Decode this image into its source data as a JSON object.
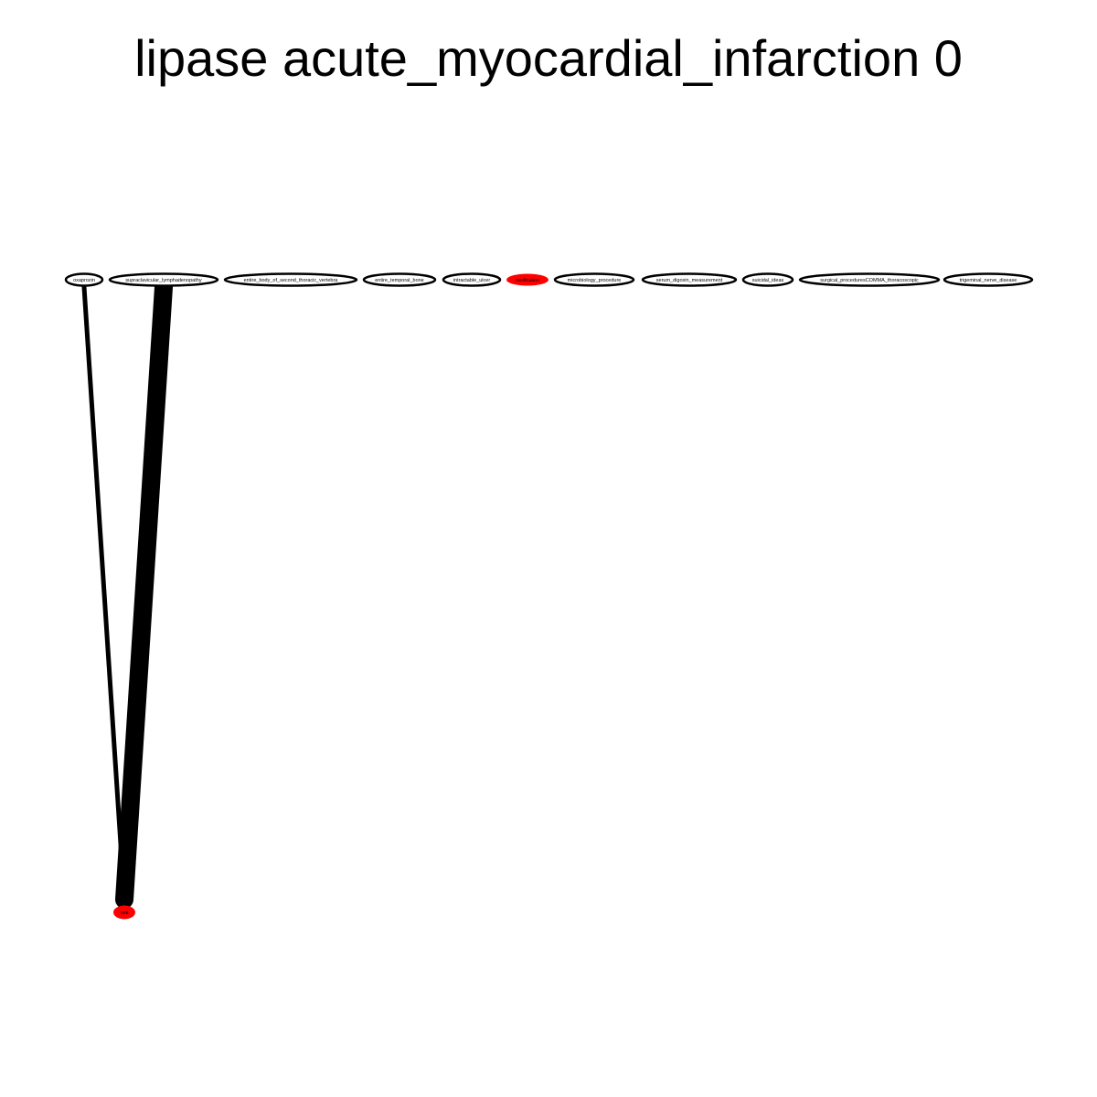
{
  "title": "lipase acute_myocardial_infarction 0",
  "colors": {
    "highlight": "#ff0000",
    "node_stroke": "#000000",
    "node_fill": "#ffffff",
    "edge": "#000000"
  },
  "nodes": [
    {
      "id": "oxaprozin",
      "label": "oxaprozin",
      "highlight": false
    },
    {
      "id": "supraclavicular_lymphadenopathy",
      "label": "supraclavicular_lymphadenopathy",
      "highlight": false
    },
    {
      "id": "entire_body_of_second_thoracic_vertebra",
      "label": "entire_body_of_second_thoracic_vertebra",
      "highlight": false
    },
    {
      "id": "entire_temporal_bone",
      "label": "entire_temporal_bone",
      "highlight": false
    },
    {
      "id": "intractable_ulcer",
      "label": "intractable_ulcer",
      "highlight": false
    },
    {
      "id": "medication",
      "label": "medication",
      "highlight": true
    },
    {
      "id": "microbiology_procedure",
      "label": "microbiology_procedure",
      "highlight": false
    },
    {
      "id": "serum_digoxin_measurement",
      "label": "serum_digoxin_measurement",
      "highlight": false
    },
    {
      "id": "suicidal_ideas",
      "label": "suicidal_ideas",
      "highlight": false
    },
    {
      "id": "surgical_proceduresCOMMA_thoracoscopic",
      "label": "surgical_proceduresCOMMA_thoracoscopic",
      "highlight": false
    },
    {
      "id": "trigeminal_nerve_disease",
      "label": "trigeminal_nerve_disease",
      "highlight": false
    },
    {
      "id": "ami",
      "label": "ami",
      "highlight": true
    }
  ],
  "edges": [
    {
      "source": "oxaprozin",
      "target": "ami",
      "weight": 1
    },
    {
      "source": "supraclavicular_lymphadenopathy",
      "target": "ami",
      "weight": 5
    }
  ]
}
